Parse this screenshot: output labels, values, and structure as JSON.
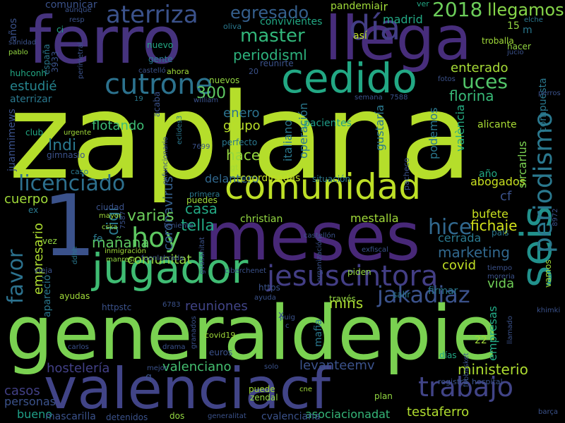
{
  "background_color": "#000000",
  "colormap": "viridis",
  "words": [
    {
      "text": "zaplana",
      "color": "#b5de2b"
    },
    {
      "text": "generaldepie",
      "color": "#7ad151"
    },
    {
      "text": "valenciacf",
      "color": "#414487"
    },
    {
      "text": "meses",
      "color": "#482878"
    },
    {
      "text": "ferro",
      "color": "#46337e"
    },
    {
      "text": "llega",
      "color": "#472d7b"
    },
    {
      "text": "comunidad",
      "color": "#bddf26"
    },
    {
      "text": "cedido",
      "color": "#22a884"
    },
    {
      "text": "jugador",
      "color": "#3fbc73"
    },
    {
      "text": "1",
      "color": "#3b528b"
    },
    {
      "text": "seis",
      "color": "#21918c"
    },
    {
      "text": "periodismo",
      "color": "#2a788e"
    },
    {
      "text": "jesuscintora",
      "color": "#433e85"
    },
    {
      "text": "trabajo",
      "color": "#414487"
    },
    {
      "text": "cutrone",
      "color": "#2c728e"
    },
    {
      "text": "aterriza",
      "color": "#3b528b"
    },
    {
      "text": "licenciado",
      "color": "#2d708e"
    },
    {
      "text": "hoy",
      "color": "#5ec962"
    },
    {
      "text": "favor",
      "color": "#2c728e"
    },
    {
      "text": "jakadiaz",
      "color": "#3b528b"
    },
    {
      "text": "hice",
      "color": "#31688e"
    },
    {
      "text": "master",
      "color": "#32b67a"
    },
    {
      "text": "uces",
      "color": "#52c569"
    },
    {
      "text": "egresado",
      "color": "#355f8d"
    },
    {
      "text": "2018",
      "color": "#6ccd5a"
    },
    {
      "text": "llegamos",
      "color": "#86d549"
    },
    {
      "text": "día",
      "color": "#433e85"
    },
    {
      "text": "periodisml",
      "color": "#2db27d"
    },
    {
      "text": "enterado",
      "color": "#a5db36"
    },
    {
      "text": "florina",
      "color": "#38b977"
    },
    {
      "text": "estudié",
      "color": "#25848e"
    },
    {
      "text": "300",
      "color": "#5ec962"
    },
    {
      "text": "lndi",
      "color": "#2a788e"
    },
    {
      "text": "flotando",
      "color": "#3dbc74"
    },
    {
      "text": "hace",
      "color": "#95d840"
    },
    {
      "text": "grupo",
      "color": "#b8de29"
    },
    {
      "text": "enero",
      "color": "#2c728e"
    },
    {
      "text": "coronavirus",
      "color": "#35608d"
    },
    {
      "text": "varias",
      "color": "#6ccd5a"
    },
    {
      "text": "casa",
      "color": "#22a884"
    },
    {
      "text": "mañana",
      "color": "#5ec962"
    },
    {
      "text": "digi",
      "color": "#2a788e"
    },
    {
      "text": "tella",
      "color": "#22a884"
    },
    {
      "text": "comunitat",
      "color": "#93d741"
    },
    {
      "text": "empresario",
      "color": "#addc30"
    },
    {
      "text": "cuerpo",
      "color": "#a0da39"
    },
    {
      "text": "marketing",
      "color": "#31688e"
    },
    {
      "text": "fichaje",
      "color": "#d2e21b"
    },
    {
      "text": "covid",
      "color": "#c0df25"
    },
    {
      "text": "vida",
      "color": "#70cf57"
    },
    {
      "text": "mins",
      "color": "#addc30"
    },
    {
      "text": "reuniones",
      "color": "#414487"
    },
    {
      "text": "valenciano",
      "color": "#44bf70"
    },
    {
      "text": "levanteemv",
      "color": "#3b528b"
    },
    {
      "text": "ministerio",
      "color": "#addc30"
    },
    {
      "text": "hostelería",
      "color": "#424086"
    },
    {
      "text": "casos",
      "color": "#424086"
    },
    {
      "text": "testaferro",
      "color": "#b0dd2f"
    },
    {
      "text": "personas",
      "color": "#3b528b"
    },
    {
      "text": "bueno",
      "color": "#1fa088"
    },
    {
      "text": "mascarilla",
      "color": "#3b528b"
    },
    {
      "text": "asociacionadat",
      "color": "#35b779"
    },
    {
      "text": "cvalenciana",
      "color": "#3b528b"
    },
    {
      "text": "empresas",
      "color": "#22a884"
    },
    {
      "text": "abogados",
      "color": "#c8e020"
    },
    {
      "text": "bufete",
      "color": "#c8e020"
    },
    {
      "text": "cerrada",
      "color": "#2a788e"
    },
    {
      "text": "mestalla",
      "color": "#a0da39"
    },
    {
      "text": "delantero",
      "color": "#31688e"
    },
    {
      "text": "coordinadas",
      "color": "#c2df23"
    },
    {
      "text": "gustaría",
      "color": "#2a788e"
    },
    {
      "text": "podemos",
      "color": "#2a788e"
    },
    {
      "text": "operación",
      "color": "#2a788e"
    },
    {
      "text": "italiano",
      "color": "#2a788e"
    },
    {
      "text": "pacientes",
      "color": "#1f9e89"
    },
    {
      "text": "alicante",
      "color": "#a8db34"
    },
    {
      "text": "sircarlus",
      "color": "#7ad151"
    },
    {
      "text": "compuesta",
      "color": "#2a788e"
    },
    {
      "text": "valència",
      "color": "#25ac82"
    },
    {
      "text": "comunicar",
      "color": "#3b528b"
    },
    {
      "text": "años",
      "color": "#3b528b"
    },
    {
      "text": "convivientes",
      "color": "#22a884"
    },
    {
      "text": "madrid",
      "color": "#22a884"
    },
    {
      "text": "pandemia",
      "color": "#a0da39"
    },
    {
      "text": "ir",
      "color": "#a0da39"
    },
    {
      "text": "ver",
      "color": "#22a884"
    },
    {
      "text": "aunque",
      "color": "#3b528b"
    },
    {
      "text": "resp",
      "color": "#3b528b"
    },
    {
      "text": "ci",
      "color": "#22a884"
    },
    {
      "text": "oliva",
      "color": "#2a788e"
    },
    {
      "text": "así",
      "color": "#c0df25"
    },
    {
      "text": "15",
      "color": "#93d741"
    },
    {
      "text": "m",
      "color": "#2a788e"
    },
    {
      "text": "troballa",
      "color": "#a0da39"
    },
    {
      "text": "elche",
      "color": "#2a788e"
    },
    {
      "text": "hacer",
      "color": "#93d741"
    },
    {
      "text": "jucio",
      "color": "#3b528b"
    },
    {
      "text": "nuevo",
      "color": "#22a884"
    },
    {
      "text": "gente",
      "color": "#2a788e"
    },
    {
      "text": "castelló",
      "color": "#3b528b"
    },
    {
      "text": "ahora",
      "color": "#a0da39"
    },
    {
      "text": "20",
      "color": "#3b528b"
    },
    {
      "text": "reunirte",
      "color": "#3b528b"
    },
    {
      "text": "nuevos",
      "color": "#93d741"
    },
    {
      "text": "william",
      "color": "#3b528b"
    },
    {
      "text": "19",
      "color": "#2a788e"
    },
    {
      "text": "fotos",
      "color": "#3b528b"
    },
    {
      "text": "perros",
      "color": "#3b528b"
    },
    {
      "text": "semana",
      "color": "#3b528b"
    },
    {
      "text": "7588",
      "color": "#3b528b"
    },
    {
      "text": "acaba",
      "color": "#3b528b"
    },
    {
      "text": "aterrizar",
      "color": "#2a788e"
    },
    {
      "text": "huhconh",
      "color": "#22a884"
    },
    {
      "text": "españa",
      "color": "#2a788e"
    },
    {
      "text": "3933",
      "color": "#3b528b"
    },
    {
      "text": "perimetral",
      "color": "#3b528b"
    },
    {
      "text": "sanidad",
      "color": "#3b528b"
    },
    {
      "text": "pablo",
      "color": "#93d741"
    },
    {
      "text": "juanmimews",
      "color": "#3b528b"
    },
    {
      "text": "club",
      "color": "#22a884"
    },
    {
      "text": "gimnasio",
      "color": "#3b528b"
    },
    {
      "text": "urgente",
      "color": "#a0da39"
    },
    {
      "text": "caso",
      "color": "#2a788e"
    },
    {
      "text": "eclides3",
      "color": "#2a788e"
    },
    {
      "text": "perfecto",
      "color": "#2a788e"
    },
    {
      "text": "exfuncionario",
      "color": "#3b528b"
    },
    {
      "text": "gt",
      "color": "#a0da39"
    },
    {
      "text": "situación",
      "color": "#2a788e"
    },
    {
      "text": "pacheco",
      "color": "#3b528b"
    },
    {
      "text": "año",
      "color": "#22a884"
    },
    {
      "text": "cf",
      "color": "#3b528b"
    },
    {
      "text": "7699",
      "color": "#3b528b"
    },
    {
      "text": "ex",
      "color": "#2a788e"
    },
    {
      "text": "ciudad",
      "color": "#3b528b"
    },
    {
      "text": "primera",
      "color": "#2a788e"
    },
    {
      "text": "puedes",
      "color": "#a0da39"
    },
    {
      "text": "christian",
      "color": "#93d741"
    },
    {
      "text": "castellón",
      "color": "#3b528b"
    },
    {
      "text": "mayor",
      "color": "#a0da39"
    },
    {
      "text": "teniente",
      "color": "#3b528b"
    },
    {
      "text": "7587",
      "color": "#3b528b"
    },
    {
      "text": "cska",
      "color": "#93d741"
    },
    {
      "text": "organización",
      "color": "#3b528b"
    },
    {
      "text": "país",
      "color": "#2a788e"
    },
    {
      "text": "8972",
      "color": "#3b528b"
    },
    {
      "text": "vez",
      "color": "#93d741"
    },
    {
      "text": "gvasanitat",
      "color": "#3b528b"
    },
    {
      "text": "inmigración",
      "color": "#a0da39"
    },
    {
      "text": "exfiscal",
      "color": "#3b528b"
    },
    {
      "text": "ddhh",
      "color": "#2a788e"
    },
    {
      "text": "manresa",
      "color": "#93d741"
    },
    {
      "text": "fuenlabrada",
      "color": "#3b528b"
    },
    {
      "text": "ciberchenet",
      "color": "#3b528b"
    },
    {
      "text": "tiempo",
      "color": "#3b528b"
    },
    {
      "text": "moreria",
      "color": "#3b528b"
    },
    {
      "text": "fe",
      "color": "#2a788e"
    },
    {
      "text": "vamos",
      "color": "#a0da39"
    },
    {
      "text": "vieja",
      "color": "#3b528b"
    },
    {
      "text": "apareció",
      "color": "#2a788e"
    },
    {
      "text": "ayudas",
      "color": "#a0da39"
    },
    {
      "text": "https",
      "color": "#3b528b"
    },
    {
      "text": "piden",
      "color": "#93d741"
    },
    {
      "text": "ayuda",
      "color": "#3b528b"
    },
    {
      "text": "httpstc",
      "color": "#3b528b"
    },
    {
      "text": "6783",
      "color": "#3b528b"
    },
    {
      "text": "salir",
      "color": "#2a788e"
    },
    {
      "text": "firmar",
      "color": "#2a788e"
    },
    {
      "text": "través",
      "color": "#93d741"
    },
    {
      "text": "khimki",
      "color": "#3b528b"
    },
    {
      "text": "llamado",
      "color": "#3b528b"
    },
    {
      "text": "puig",
      "color": "#3b528b"
    },
    {
      "text": "mafia",
      "color": "#2a788e"
    },
    {
      "text": "x",
      "color": "#3b528b"
    },
    {
      "text": "c",
      "color": "#3b528b"
    },
    {
      "text": "22",
      "color": "#a0da39"
    },
    {
      "text": "granados",
      "color": "#3b528b"
    },
    {
      "text": "covid19",
      "color": "#a0da39"
    },
    {
      "text": "euros",
      "color": "#3b528b"
    },
    {
      "text": "carlos",
      "color": "#3b528b"
    },
    {
      "text": "drama",
      "color": "#3b528b"
    },
    {
      "text": "días",
      "color": "#22a884"
    },
    {
      "text": "fcbbasket",
      "color": "#3b528b"
    },
    {
      "text": "registra",
      "color": "#3b528b"
    },
    {
      "text": "hospital",
      "color": "#3b528b"
    },
    {
      "text": "mejor",
      "color": "#3b528b"
    },
    {
      "text": "q",
      "color": "#3b528b"
    },
    {
      "text": "solo",
      "color": "#3b528b"
    },
    {
      "text": "puede",
      "color": "#a0da39"
    },
    {
      "text": "cne",
      "color": "#a0da39"
    },
    {
      "text": "zendal",
      "color": "#93d741"
    },
    {
      "text": "plan",
      "color": "#93d741"
    },
    {
      "text": "detenidos",
      "color": "#3b528b"
    },
    {
      "text": "generalitat",
      "color": "#3b528b"
    },
    {
      "text": "dos",
      "color": "#93d741"
    },
    {
      "text": "barça",
      "color": "#3b528b"
    }
  ]
}
